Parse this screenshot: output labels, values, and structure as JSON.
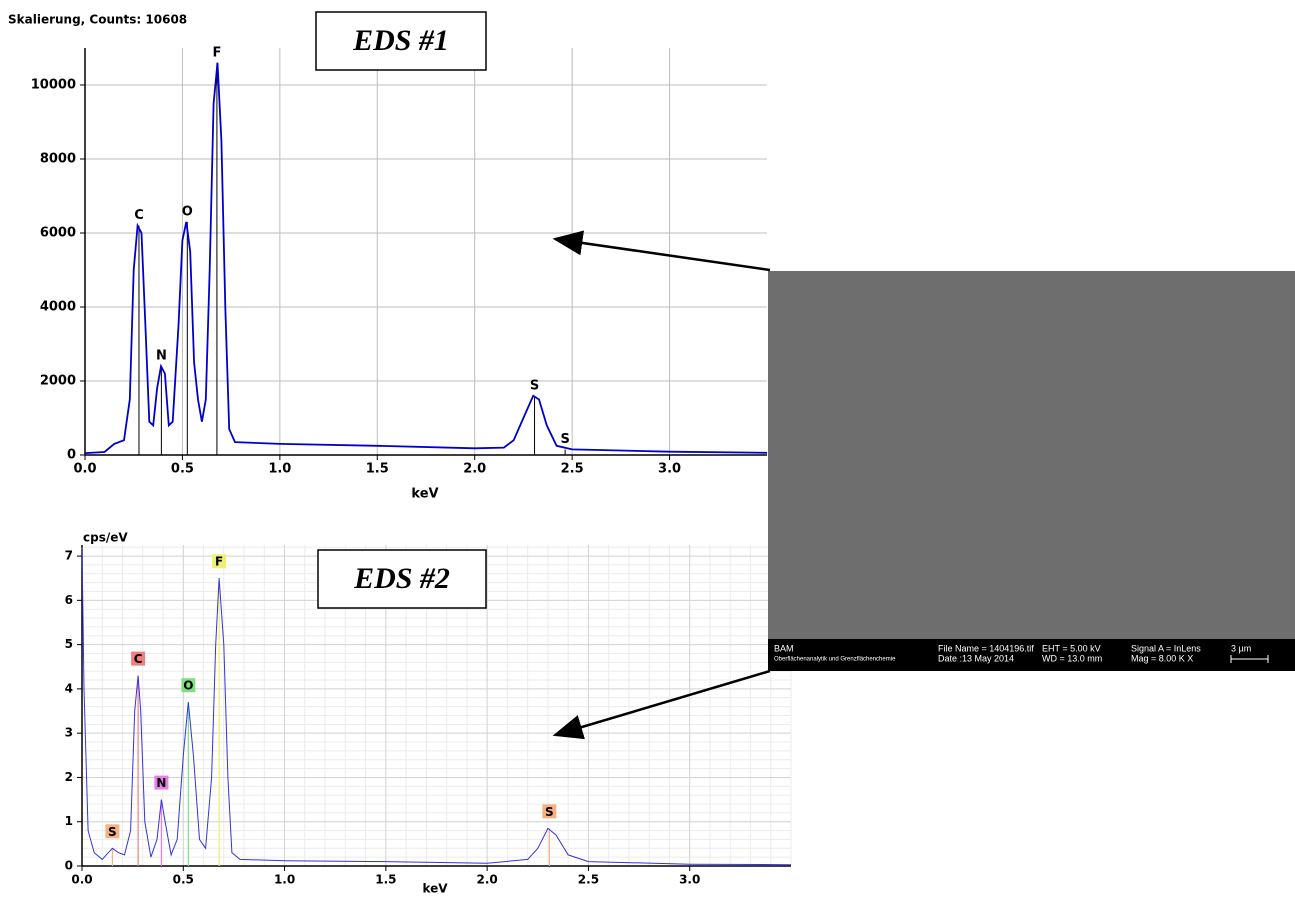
{
  "chart_data": [
    {
      "type": "line",
      "title": "Skalierung, Counts: 10608",
      "annotation": "EDS #1",
      "xlabel": "keV",
      "color": "#0000cc",
      "grid": true,
      "xlim": [
        0,
        3.5
      ],
      "xticks": [
        {
          "value": 0,
          "label": "0.0"
        },
        0.5,
        {
          "value": 1,
          "label": "1.0"
        },
        1.5,
        {
          "value": 2,
          "label": "2.0"
        },
        2.5,
        {
          "value": 3,
          "label": "3.0"
        }
      ],
      "ylim": [
        0,
        11000
      ],
      "yticks": [
        0,
        2000,
        4000,
        6000,
        8000,
        10000
      ],
      "x": [
        0.0,
        0.1,
        0.15,
        0.2,
        0.23,
        0.25,
        0.27,
        0.29,
        0.31,
        0.33,
        0.35,
        0.37,
        0.39,
        0.41,
        0.43,
        0.45,
        0.48,
        0.5,
        0.52,
        0.54,
        0.56,
        0.58,
        0.6,
        0.62,
        0.64,
        0.66,
        0.68,
        0.7,
        0.72,
        0.74,
        0.77,
        1.0,
        1.5,
        2.0,
        2.15,
        2.2,
        2.25,
        2.3,
        2.33,
        2.37,
        2.42,
        2.5,
        3.0,
        3.5
      ],
      "values": [
        50,
        80,
        300,
        400,
        1500,
        5000,
        6200,
        6000,
        3500,
        900,
        800,
        1800,
        2400,
        2200,
        800,
        900,
        3500,
        5800,
        6300,
        5500,
        2500,
        1500,
        900,
        1500,
        5000,
        9500,
        10600,
        8500,
        4000,
        700,
        350,
        300,
        250,
        180,
        200,
        400,
        1000,
        1600,
        1500,
        800,
        250,
        150,
        90,
        60
      ],
      "peaks": [
        {
          "label": "C",
          "x": 0.277,
          "y": 6200
        },
        {
          "label": "N",
          "x": 0.392,
          "y": 2400
        },
        {
          "label": "O",
          "x": 0.525,
          "y": 6300
        },
        {
          "label": "F",
          "x": 0.677,
          "y": 10600
        },
        {
          "label": "S",
          "x": 2.307,
          "y": 1600
        },
        {
          "label": "S",
          "x": 2.464,
          "y": 150
        }
      ]
    },
    {
      "type": "line",
      "annotation": "EDS #2",
      "ylabel": "cps/eV",
      "xlabel": "keV",
      "color": "#3333dd",
      "grid": true,
      "minor_grid": true,
      "xlim": [
        0,
        3.5
      ],
      "xticks": [
        {
          "value": 0,
          "label": "0.0"
        },
        0.5,
        {
          "value": 1,
          "label": "1.0"
        },
        1.5,
        {
          "value": 2,
          "label": "2.0"
        },
        2.5,
        {
          "value": 3,
          "label": "3.0"
        }
      ],
      "ylim": [
        0,
        7.25
      ],
      "yticks": [
        0,
        1,
        2,
        3,
        4,
        5,
        6,
        7
      ],
      "x": [
        0.0,
        0.01,
        0.03,
        0.06,
        0.1,
        0.13,
        0.15,
        0.18,
        0.21,
        0.24,
        0.26,
        0.277,
        0.29,
        0.31,
        0.34,
        0.37,
        0.392,
        0.41,
        0.44,
        0.47,
        0.5,
        0.525,
        0.55,
        0.58,
        0.61,
        0.64,
        0.66,
        0.677,
        0.7,
        0.72,
        0.74,
        0.78,
        1.0,
        1.5,
        2.0,
        2.2,
        2.25,
        2.3,
        2.34,
        2.4,
        2.5,
        3.0,
        3.5
      ],
      "values": [
        7.2,
        4,
        0.8,
        0.3,
        0.15,
        0.3,
        0.4,
        0.3,
        0.25,
        0.8,
        3.5,
        4.3,
        3.5,
        1.0,
        0.2,
        0.6,
        1.5,
        1.0,
        0.25,
        0.6,
        2.5,
        3.7,
        2.5,
        0.6,
        0.4,
        2.0,
        5.0,
        6.5,
        5.0,
        2.0,
        0.3,
        0.15,
        0.12,
        0.1,
        0.06,
        0.15,
        0.4,
        0.85,
        0.7,
        0.25,
        0.1,
        0.04,
        0.03
      ],
      "peaks": [
        {
          "label": "S",
          "x": 0.15,
          "y": 0.4,
          "color": "#f4b183"
        },
        {
          "label": "C",
          "x": 0.277,
          "y": 4.3,
          "color": "#f08080"
        },
        {
          "label": "N",
          "x": 0.392,
          "y": 1.5,
          "color": "#e87de8"
        },
        {
          "label": "O",
          "x": 0.525,
          "y": 3.7,
          "color": "#80e080"
        },
        {
          "label": "F",
          "x": 0.677,
          "y": 6.5,
          "color": "#f0f070"
        },
        {
          "label": "S",
          "x": 2.307,
          "y": 0.85,
          "color": "#f4b183"
        }
      ]
    }
  ],
  "sem_image": {
    "org": "BAM",
    "dept": "Oberflächenanalytik und Grenzflächenchemie",
    "file": "File Name = 1404196.tif",
    "date": "Date :13 May 2014",
    "eht": "EHT =  5.00 kV",
    "wd": "WD = 13.0 mm",
    "signal": "Signal A = InLens",
    "mag": "Mag =  8.00 K X",
    "scale": "3 µm"
  }
}
